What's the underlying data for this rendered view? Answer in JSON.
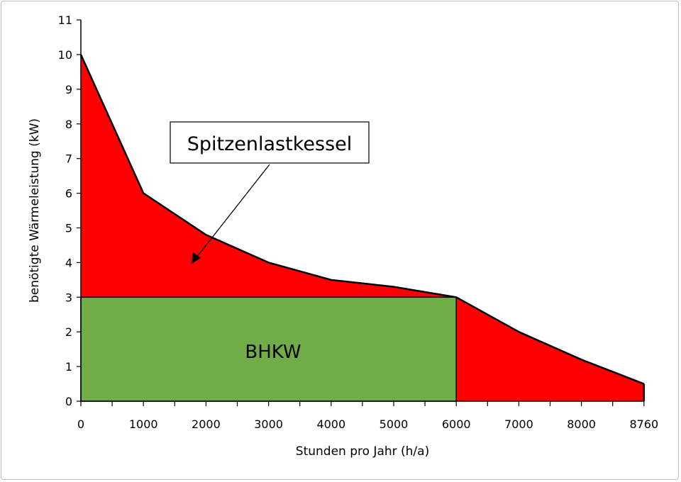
{
  "chart_data": {
    "type": "area",
    "title": "",
    "xlabel": "Stunden pro Jahr (h/a)",
    "ylabel": "benötigte Wärmeleistung (kW)",
    "ylim": [
      0,
      11
    ],
    "x_ticks": [
      "0",
      "1000",
      "2000",
      "3000",
      "4000",
      "5000",
      "6000",
      "7000",
      "8000",
      "8760"
    ],
    "y_ticks": [
      "0",
      "1",
      "2",
      "3",
      "4",
      "5",
      "6",
      "7",
      "8",
      "9",
      "10",
      "11"
    ],
    "grid": false,
    "series": [
      {
        "name": "Spitzenlastkessel",
        "color": "#ff0000",
        "x": [
          0,
          1000,
          2000,
          3000,
          4000,
          5000,
          6000,
          7000,
          8000,
          8760
        ],
        "y": [
          10,
          6,
          4.8,
          4,
          3.5,
          3.3,
          3,
          2,
          1.2,
          0.5
        ]
      },
      {
        "name": "BHKW",
        "color": "#70ad47",
        "x": [
          0,
          6000
        ],
        "y": [
          3,
          3
        ]
      }
    ],
    "annotations": [
      {
        "text": "Spitzenlastkessel",
        "type": "callout-box-with-arrow"
      },
      {
        "text": "BHKW",
        "type": "label"
      }
    ]
  }
}
